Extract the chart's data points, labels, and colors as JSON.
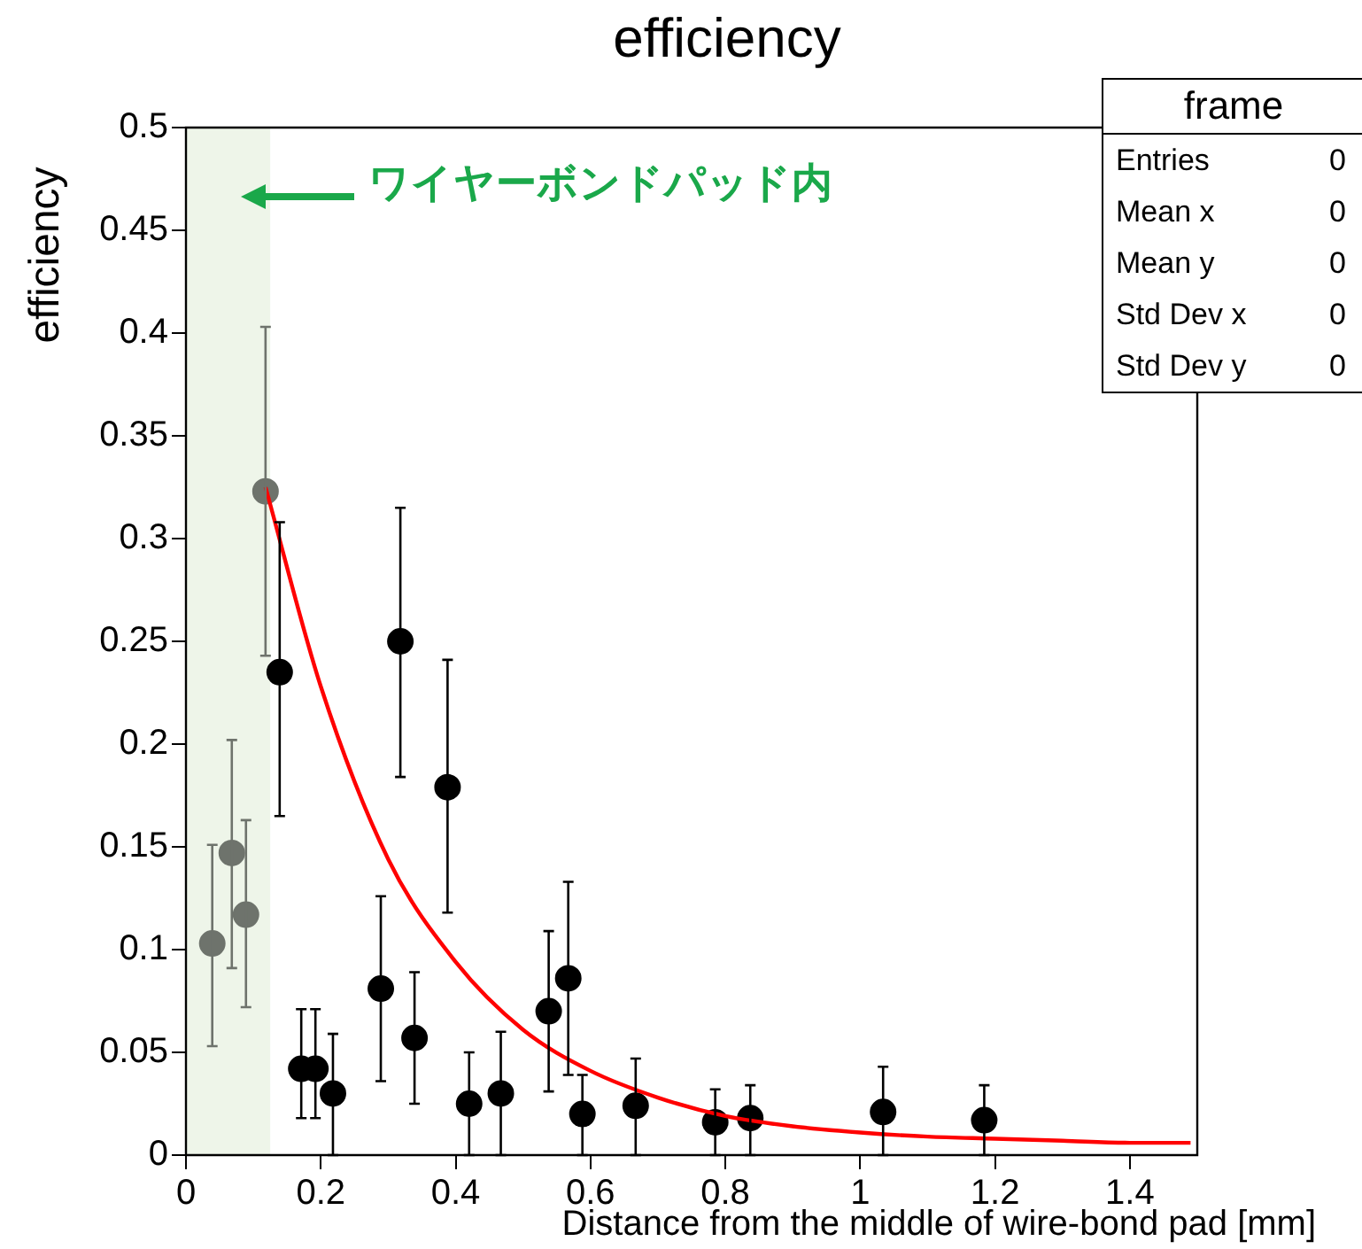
{
  "chart_data": {
    "type": "scatter",
    "title": "efficiency",
    "xlabel": "Distance from the middle of wire-bond pad [mm]",
    "ylabel": "efficiency",
    "xlim": [
      0,
      1.5
    ],
    "ylim": [
      0,
      0.5
    ],
    "xticks": [
      0,
      0.2,
      0.4,
      0.6,
      0.8,
      1,
      1.2,
      1.4
    ],
    "yticks": [
      0,
      0.05,
      0.1,
      0.15,
      0.2,
      0.25,
      0.3,
      0.35,
      0.4,
      0.45,
      0.5
    ],
    "grid": false,
    "legend": false,
    "marker": "circle",
    "series": [
      {
        "color": "#6e736c",
        "x": [
          0.039,
          0.068,
          0.089,
          0.118
        ],
        "values": [
          0.103,
          0.147,
          0.117,
          0.323
        ],
        "errors": [
          [
            0.053,
            0.151
          ],
          [
            0.091,
            0.202
          ],
          [
            0.072,
            0.163
          ],
          [
            0.243,
            0.403
          ]
        ]
      },
      {
        "color": "#000000",
        "x": [
          0.139,
          0.171,
          0.192,
          0.218,
          0.289,
          0.318,
          0.339,
          0.388,
          0.42,
          0.467,
          0.538,
          0.567,
          0.588,
          0.667,
          0.785,
          0.837,
          1.034,
          1.184
        ],
        "values": [
          0.235,
          0.042,
          0.042,
          0.03,
          0.081,
          0.25,
          0.057,
          0.179,
          0.025,
          0.03,
          0.07,
          0.086,
          0.02,
          0.024,
          0.016,
          0.018,
          0.021,
          0.017
        ],
        "errors": [
          [
            0.165,
            0.308
          ],
          [
            0.018,
            0.071
          ],
          [
            0.018,
            0.071
          ],
          [
            0,
            0.059
          ],
          [
            0.036,
            0.126
          ],
          [
            0.184,
            0.315
          ],
          [
            0.025,
            0.089
          ],
          [
            0.118,
            0.241
          ],
          [
            0,
            0.05
          ],
          [
            0,
            0.06
          ],
          [
            0.031,
            0.109
          ],
          [
            0.039,
            0.133
          ],
          [
            0,
            0.039
          ],
          [
            0,
            0.047
          ],
          [
            0,
            0.032
          ],
          [
            0,
            0.034
          ],
          [
            0,
            0.043
          ],
          [
            0,
            0.034
          ]
        ]
      },
      {
        "type": "line",
        "color": "#ff0000",
        "marker": "none",
        "x": [
          0.118,
          0.2,
          0.3,
          0.4,
          0.5,
          0.6,
          0.7,
          0.8,
          0.9,
          1,
          1.1,
          1.2,
          1.3,
          1.4,
          1.49
        ],
        "values": [
          0.325,
          0.228,
          0.144,
          0.094,
          0.061,
          0.041,
          0.028,
          0.019,
          0.014,
          0.011,
          0.009,
          0.008,
          0.007,
          0.006,
          0.006
        ]
      }
    ],
    "bands": [
      {
        "axis": "x",
        "from": 0,
        "to": 0.125,
        "color": "#eef5e9"
      }
    ],
    "annotations": [
      "ワイヤーボンドパッド内",
      "frame",
      "Entries 0",
      "Mean x 0",
      "Mean y 0",
      "Std Dev x 0",
      "Std Dev y 0"
    ]
  }
}
